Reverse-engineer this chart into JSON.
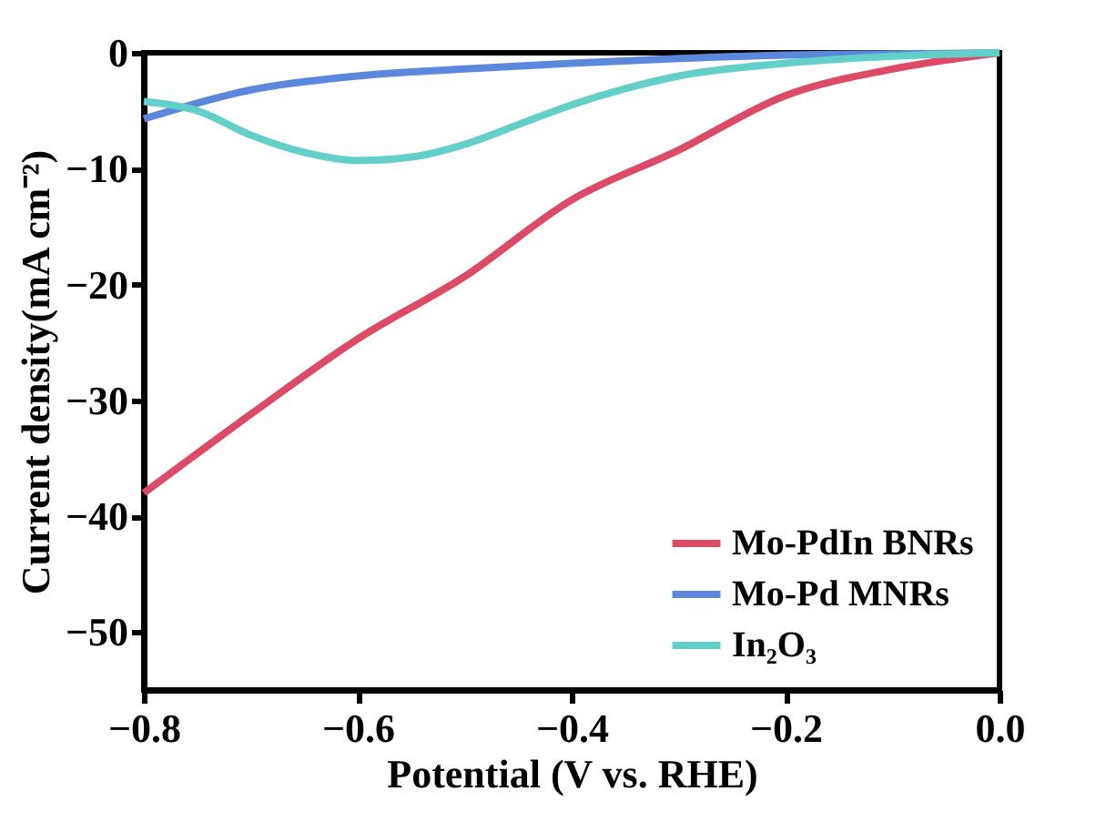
{
  "chart_data": {
    "type": "line",
    "xlabel": "Potential (V vs. RHE)",
    "ylabel": "Current density(mA cm⁻²)",
    "xlim": [
      -0.8,
      0.0
    ],
    "xticks": [
      -0.8,
      -0.6,
      -0.4,
      -0.2,
      {
        "value": 0.0,
        "label": "0.0"
      }
    ],
    "ylim": [
      -55,
      0
    ],
    "yticks": [
      -50,
      -40,
      -30,
      -20,
      -10,
      0
    ],
    "grid": false,
    "legend": "bottom right",
    "line_style": "solid",
    "marker": "none",
    "series": [
      {
        "name": "Mo-PdIn BNRs",
        "color": "#dc4a66",
        "x": [
          -0.8,
          -0.7,
          -0.6,
          -0.5,
          -0.4,
          -0.3,
          -0.2,
          -0.1,
          0.0
        ],
        "values": [
          -38.0,
          -31.2,
          -24.7,
          -19.3,
          -12.7,
          -8.4,
          -3.7,
          -1.4,
          0.0
        ]
      },
      {
        "name": "Mo-Pd MNRs",
        "color": "#5b87dc",
        "x": [
          -0.8,
          -0.7,
          -0.6,
          -0.5,
          -0.4,
          -0.3,
          -0.2,
          -0.1,
          0.0
        ],
        "values": [
          -5.7,
          -3.2,
          -2.0,
          -1.4,
          -0.9,
          -0.5,
          -0.2,
          -0.1,
          0.0
        ]
      },
      {
        "name": "In₂O₃",
        "color": "#62cfc8",
        "x": [
          -0.8,
          -0.75,
          -0.7,
          -0.65,
          -0.6,
          -0.55,
          -0.5,
          -0.45,
          -0.4,
          -0.35,
          -0.3,
          -0.2,
          -0.1,
          0.0
        ],
        "values": [
          -4.2,
          -5.0,
          -7.1,
          -8.6,
          -9.3,
          -9.0,
          -7.9,
          -6.2,
          -4.5,
          -3.1,
          -2.0,
          -0.9,
          -0.3,
          0.0
        ]
      }
    ]
  }
}
